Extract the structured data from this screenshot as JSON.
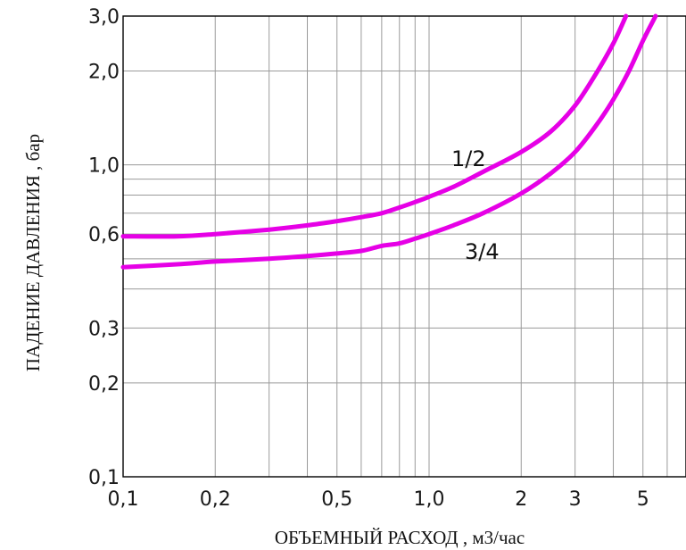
{
  "chart_data": {
    "type": "line",
    "xlabel": "ОБЪЕМНЫЙ РАСХОД , м3/час",
    "ylabel": "ПАДЕНИЕ ДАВЛЕНИЯ , бар",
    "xscale": "log",
    "yscale": "log",
    "xlim": [
      0.1,
      7
    ],
    "ylim": [
      0.1,
      3.0
    ],
    "grid": true,
    "x_ticks": [
      {
        "value": 0.1,
        "label": "0,1"
      },
      {
        "value": 0.2,
        "label": "0,2"
      },
      {
        "value": 0.5,
        "label": "0,5"
      },
      {
        "value": 1.0,
        "label": "1,0"
      },
      {
        "value": 2,
        "label": "2"
      },
      {
        "value": 3,
        "label": "3"
      },
      {
        "value": 5,
        "label": "5"
      }
    ],
    "y_ticks": [
      {
        "value": 0.1,
        "label": "0,1"
      },
      {
        "value": 0.2,
        "label": "0,2"
      },
      {
        "value": 0.3,
        "label": "0,3"
      },
      {
        "value": 0.6,
        "label": "0,6"
      },
      {
        "value": 1.0,
        "label": "1,0"
      },
      {
        "value": 2.0,
        "label": "2,0"
      },
      {
        "value": 3.0,
        "label": "3,0"
      }
    ],
    "x_grid": [
      0.1,
      0.2,
      0.3,
      0.4,
      0.5,
      0.6,
      0.7,
      0.8,
      0.9,
      1,
      2,
      3,
      4,
      5,
      6,
      7
    ],
    "y_grid": [
      0.1,
      0.2,
      0.3,
      0.4,
      0.5,
      0.6,
      0.7,
      0.8,
      0.9,
      1,
      2,
      3
    ],
    "series": [
      {
        "name": "1/2",
        "color": "#e600e6",
        "x": [
          0.1,
          0.15,
          0.2,
          0.3,
          0.4,
          0.5,
          0.6,
          0.7,
          0.8,
          0.9,
          1.0,
          1.2,
          1.5,
          2.0,
          2.5,
          3.0,
          3.5,
          4.0,
          4.4
        ],
        "y": [
          0.59,
          0.59,
          0.6,
          0.62,
          0.64,
          0.66,
          0.68,
          0.7,
          0.73,
          0.76,
          0.79,
          0.85,
          0.95,
          1.1,
          1.28,
          1.55,
          1.95,
          2.45,
          3.0
        ]
      },
      {
        "name": "3/4",
        "color": "#e600e6",
        "x": [
          0.1,
          0.15,
          0.2,
          0.3,
          0.4,
          0.5,
          0.6,
          0.7,
          0.8,
          0.9,
          1.0,
          1.2,
          1.5,
          2.0,
          2.5,
          3.0,
          3.5,
          4.0,
          4.5,
          5.0,
          5.5
        ],
        "y": [
          0.47,
          0.48,
          0.49,
          0.5,
          0.51,
          0.52,
          0.53,
          0.55,
          0.56,
          0.58,
          0.6,
          0.64,
          0.7,
          0.81,
          0.94,
          1.1,
          1.33,
          1.62,
          2.0,
          2.5,
          3.0
        ]
      }
    ]
  }
}
